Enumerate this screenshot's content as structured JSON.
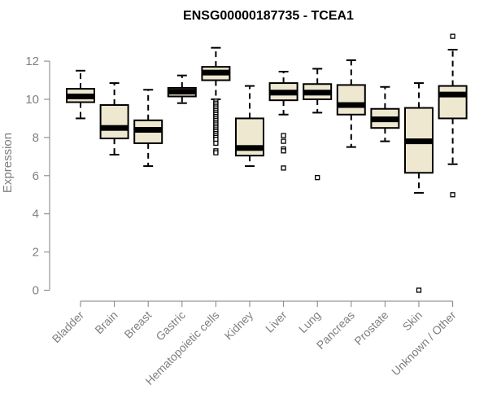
{
  "chart_data": {
    "type": "box",
    "title": "ENSG00000187735 - TCEA1",
    "xlabel": "",
    "ylabel": "Expression",
    "ylim": [
      0,
      13.4
    ],
    "yticks": [
      "0",
      "2",
      "4",
      "6",
      "8",
      "10",
      "12"
    ],
    "grid": false,
    "colors": {
      "box_fill": "#efe8d0",
      "stroke": "#000000",
      "axis": "#7f7f7f"
    },
    "categories": [
      "Bladder",
      "Brain",
      "Breast",
      "Gastric",
      "Hematopoietic cells",
      "Kidney",
      "Liver",
      "Lung",
      "Pancreas",
      "Prostate",
      "Skin",
      "Unknown / Other"
    ],
    "boxes": [
      {
        "whisker_low": 9.0,
        "q1": 9.85,
        "median": 10.15,
        "q3": 10.55,
        "whisker_high": 11.5,
        "outliers": []
      },
      {
        "whisker_low": 7.1,
        "q1": 7.95,
        "median": 8.5,
        "q3": 9.7,
        "whisker_high": 10.85,
        "outliers": []
      },
      {
        "whisker_low": 6.5,
        "q1": 7.7,
        "median": 8.4,
        "q3": 8.9,
        "whisker_high": 10.5,
        "outliers": []
      },
      {
        "whisker_low": 9.8,
        "q1": 10.15,
        "median": 10.4,
        "q3": 10.6,
        "whisker_high": 11.25,
        "outliers": []
      },
      {
        "whisker_low": 10.0,
        "q1": 11.0,
        "median": 11.4,
        "q3": 11.7,
        "whisker_high": 12.7,
        "outliers": [
          9.9,
          9.8,
          9.7,
          9.6,
          9.5,
          9.4,
          9.3,
          9.2,
          9.1,
          9.0,
          8.9,
          8.8,
          8.7,
          8.6,
          8.5,
          8.4,
          8.3,
          8.2,
          8.1,
          8.0,
          7.9,
          7.7,
          7.3,
          7.2
        ]
      },
      {
        "whisker_low": 6.5,
        "q1": 7.05,
        "median": 7.45,
        "q3": 9.0,
        "whisker_high": 10.7,
        "outliers": []
      },
      {
        "whisker_low": 9.2,
        "q1": 9.95,
        "median": 10.35,
        "q3": 10.85,
        "whisker_high": 11.45,
        "outliers": [
          8.1,
          7.8,
          7.4,
          7.3,
          6.4
        ]
      },
      {
        "whisker_low": 9.3,
        "q1": 10.0,
        "median": 10.35,
        "q3": 10.8,
        "whisker_high": 11.6,
        "outliers": [
          5.9
        ]
      },
      {
        "whisker_low": 7.5,
        "q1": 9.2,
        "median": 9.7,
        "q3": 10.75,
        "whisker_high": 12.05,
        "outliers": []
      },
      {
        "whisker_low": 7.8,
        "q1": 8.5,
        "median": 8.95,
        "q3": 9.5,
        "whisker_high": 10.65,
        "outliers": []
      },
      {
        "whisker_low": 5.1,
        "q1": 6.15,
        "median": 7.8,
        "q3": 9.55,
        "whisker_high": 10.85,
        "outliers": [
          0.0
        ]
      },
      {
        "whisker_low": 6.6,
        "q1": 9.0,
        "median": 10.25,
        "q3": 10.7,
        "whisker_high": 12.6,
        "outliers": [
          13.3,
          5.0
        ]
      }
    ]
  }
}
